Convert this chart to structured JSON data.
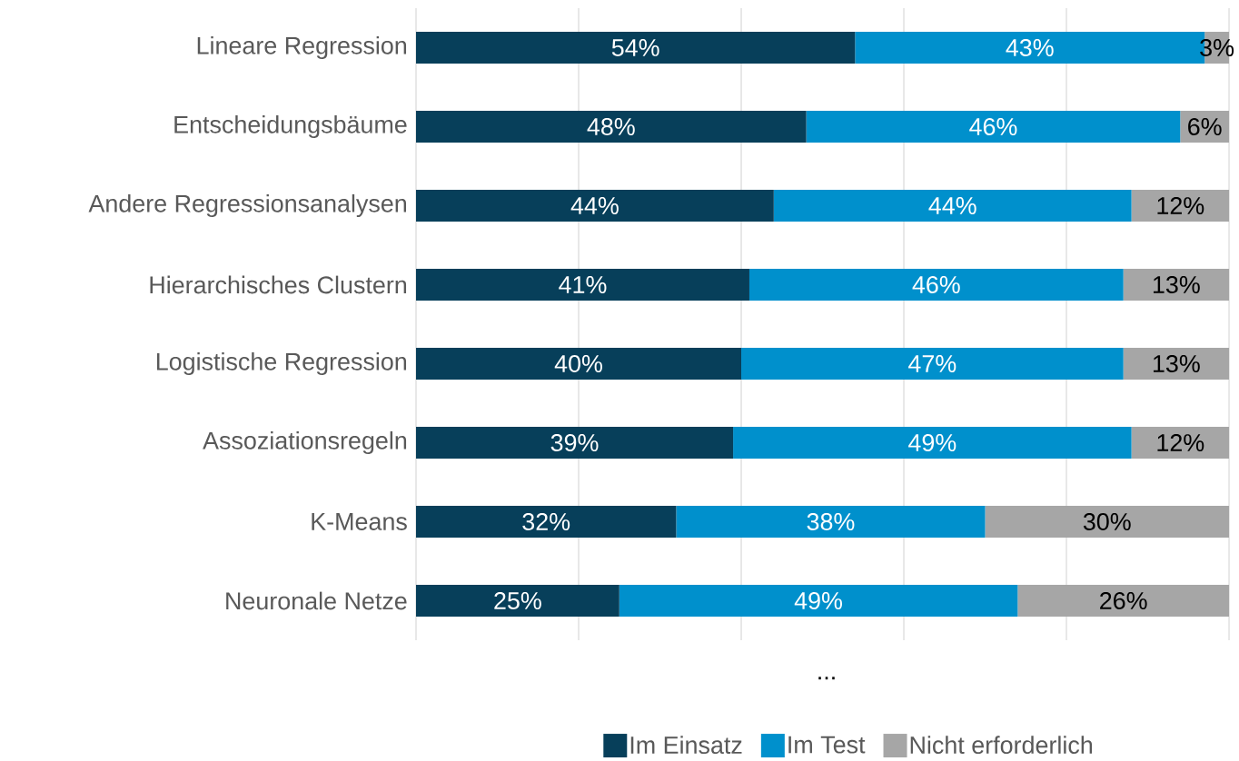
{
  "chart_data": {
    "type": "bar",
    "orientation": "horizontal",
    "stacked": true,
    "categories": [
      "Lineare Regression",
      "Entscheidungsbäume",
      "Andere Regressionsanalysen",
      "Hierarchisches Clustern",
      "Logistische Regression",
      "Assoziationsregeln",
      "K-Means",
      "Neuronale Netze"
    ],
    "series": [
      {
        "name": "Im Einsatz",
        "color": "#073f5a",
        "values": [
          54,
          48,
          44,
          41,
          40,
          39,
          32,
          25
        ],
        "value_labels": [
          "54%",
          "48%",
          "44%",
          "41%",
          "40%",
          "39%",
          "32%",
          "25%"
        ]
      },
      {
        "name": "Im Test",
        "color": "#0090cc",
        "values": [
          43,
          46,
          44,
          46,
          47,
          49,
          38,
          49
        ],
        "value_labels": [
          "43%",
          "46%",
          "44%",
          "46%",
          "47%",
          "49%",
          "38%",
          "49%"
        ]
      },
      {
        "name": "Nicht erforderlich",
        "color": "#a6a6a6",
        "values": [
          3,
          6,
          12,
          13,
          13,
          12,
          30,
          26
        ],
        "value_labels": [
          "3%",
          "6%",
          "12%",
          "13%",
          "13%",
          "12%",
          "30%",
          "26%"
        ]
      }
    ],
    "xlim": [
      0,
      100
    ],
    "xticks": [
      {
        "value": 0,
        "label": null
      },
      {
        "value": 20,
        "label": null
      },
      {
        "value": 40,
        "label": null
      },
      {
        "value": 60,
        "label": null
      },
      {
        "value": 80,
        "label": null
      },
      {
        "value": 100,
        "label": null
      }
    ],
    "tick_labels": "y",
    "grid": "x",
    "legend": "bottom",
    "annotations": [
      "..."
    ]
  }
}
